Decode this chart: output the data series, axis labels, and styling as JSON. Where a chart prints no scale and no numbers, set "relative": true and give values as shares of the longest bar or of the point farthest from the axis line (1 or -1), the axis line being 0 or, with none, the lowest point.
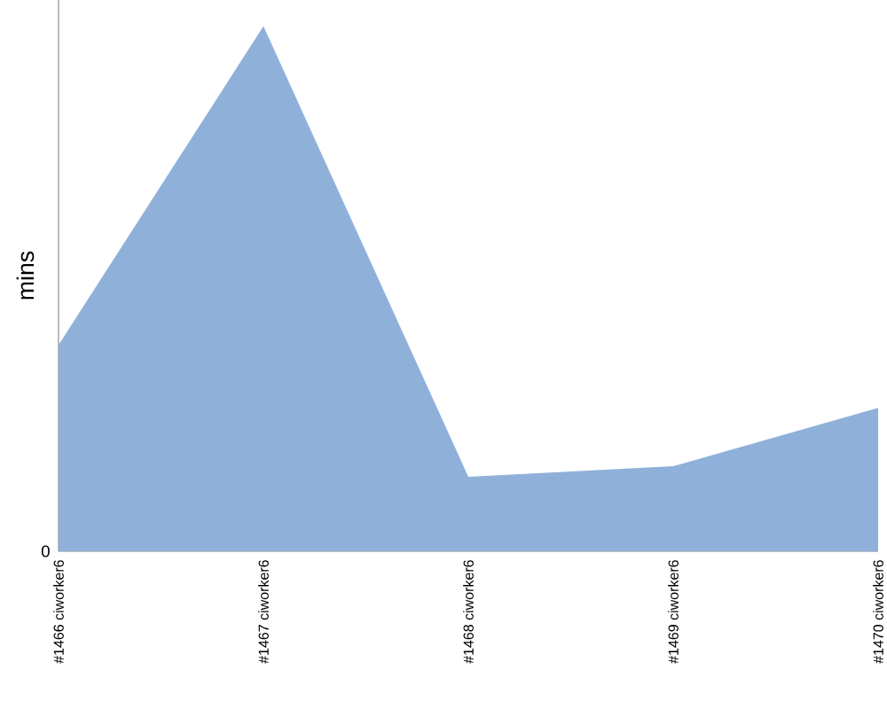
{
  "chart_data": {
    "type": "area",
    "ylabel": "mins",
    "relative": true,
    "annotations": [
      "0"
    ],
    "categories": [
      "#1466 ciworker6",
      "#1467 ciworker6",
      "#1468 ciworker6",
      "#1469 ciworker6",
      "#1470 ciworker6"
    ],
    "values": [
      0.393,
      1,
      0.142,
      0.162,
      0.273
    ],
    "color": "#8fb1d9"
  }
}
